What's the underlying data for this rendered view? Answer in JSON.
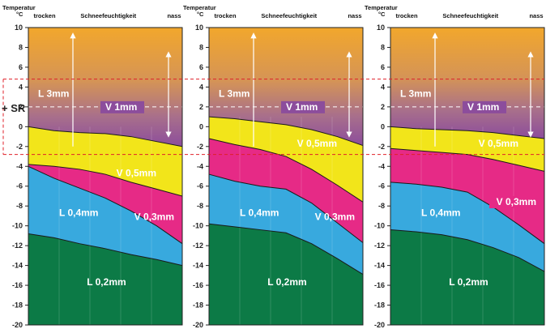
{
  "colors": {
    "orange_top": "#f2a72c",
    "orange_mid": "#d79550",
    "violet": "#8c4d9c",
    "yellow": "#f2e51a",
    "magenta": "#e62a86",
    "cyan": "#38a9de",
    "green": "#0c7a46",
    "axis": "#111111",
    "sr_marker": "#e0202a",
    "arrow": "#ffffff"
  },
  "sr_label": "+ SR",
  "chart_data": [
    {
      "type": "area",
      "ylabel": "Temperatur\n°C",
      "ylim": [
        -20,
        10
      ],
      "yticks": [
        10,
        8,
        6,
        4,
        2,
        0,
        -2,
        -4,
        -6,
        -8,
        -10,
        -12,
        -14,
        -16,
        -18,
        -20
      ],
      "x_categories": [
        "trocken",
        "Schneefeuchtigkeit",
        "nass"
      ],
      "x": [
        0,
        1,
        2,
        3,
        4,
        5,
        6
      ],
      "boundaries": {
        "violet_yellow": [
          0,
          -0.4,
          -0.6,
          -0.7,
          -1.0,
          -1.5,
          -2.0
        ],
        "yellow_magenta": [
          -3.8,
          -4.0,
          -4.3,
          -4.8,
          -5.6,
          -6.3,
          -7.0
        ],
        "magenta_cyan": [
          -4.0,
          -5.2,
          -6.2,
          -7.2,
          -8.5,
          -10.0,
          -11.8
        ],
        "cyan_green": [
          -10.8,
          -11.2,
          -11.8,
          -12.3,
          -12.9,
          -13.4,
          -14.0
        ]
      },
      "regions": [
        "L 3mm",
        "V 1mm",
        "V 0,5mm",
        "V 0,3mm",
        "L 0,4mm",
        "L 0,2mm"
      ],
      "dashed_line_y": 2,
      "sr_band": [
        -2.8,
        4.8
      ]
    },
    {
      "type": "area",
      "ylabel": "Temperatur\n°C",
      "ylim": [
        -20,
        10
      ],
      "yticks": [
        10,
        8,
        6,
        4,
        2,
        0,
        -2,
        -4,
        -6,
        -8,
        -10,
        -12,
        -14,
        -16,
        -18,
        -20
      ],
      "x_categories": [
        "trocken",
        "Schneefeuchtigkeit",
        "nass"
      ],
      "x": [
        0,
        1,
        2,
        3,
        4,
        5,
        6
      ],
      "boundaries": {
        "violet_yellow": [
          1.0,
          0.8,
          0.5,
          0.2,
          -0.3,
          -1.0,
          -1.9
        ],
        "yellow_magenta": [
          -1.2,
          -1.8,
          -2.3,
          -3.0,
          -4.3,
          -5.9,
          -7.6
        ],
        "magenta_cyan": [
          -4.8,
          -5.5,
          -6.0,
          -6.3,
          -7.7,
          -9.7,
          -11.7
        ],
        "cyan_green": [
          -9.8,
          -10.1,
          -10.4,
          -10.7,
          -11.8,
          -13.3,
          -14.9
        ]
      },
      "regions": [
        "L 3mm",
        "V 1mm",
        "V 0,5mm",
        "V 0,3mm",
        "L 0,4mm",
        "L 0,2mm"
      ],
      "dashed_line_y": 2,
      "sr_band": [
        -2.8,
        4.8
      ]
    },
    {
      "type": "area",
      "ylabel": "Temperatur\n°C",
      "ylim": [
        -20,
        10
      ],
      "yticks": [
        10,
        8,
        6,
        4,
        2,
        0,
        -2,
        -4,
        -6,
        -8,
        -10,
        -12,
        -14,
        -16,
        -18,
        -20
      ],
      "x_categories": [
        "trocken",
        "Schneefeuchtigkeit",
        "nass"
      ],
      "x": [
        0,
        1,
        2,
        3,
        4,
        5,
        6
      ],
      "boundaries": {
        "violet_yellow": [
          0,
          -0.2,
          -0.3,
          -0.4,
          -0.6,
          -0.9,
          -1.2
        ],
        "yellow_magenta": [
          -2.2,
          -2.4,
          -2.6,
          -2.8,
          -3.3,
          -3.9,
          -4.5
        ],
        "magenta_cyan": [
          -5.6,
          -5.8,
          -6.1,
          -6.6,
          -8.1,
          -9.9,
          -11.8
        ],
        "cyan_green": [
          -10.4,
          -10.6,
          -10.9,
          -11.4,
          -12.2,
          -13.2,
          -14.6
        ]
      },
      "regions": [
        "L 3mm",
        "V 1mm",
        "V 0,5mm",
        "V 0,3mm",
        "L 0,4mm",
        "L 0,2mm"
      ],
      "dashed_line_y": 2,
      "sr_band": [
        -2.8,
        4.8
      ]
    }
  ]
}
